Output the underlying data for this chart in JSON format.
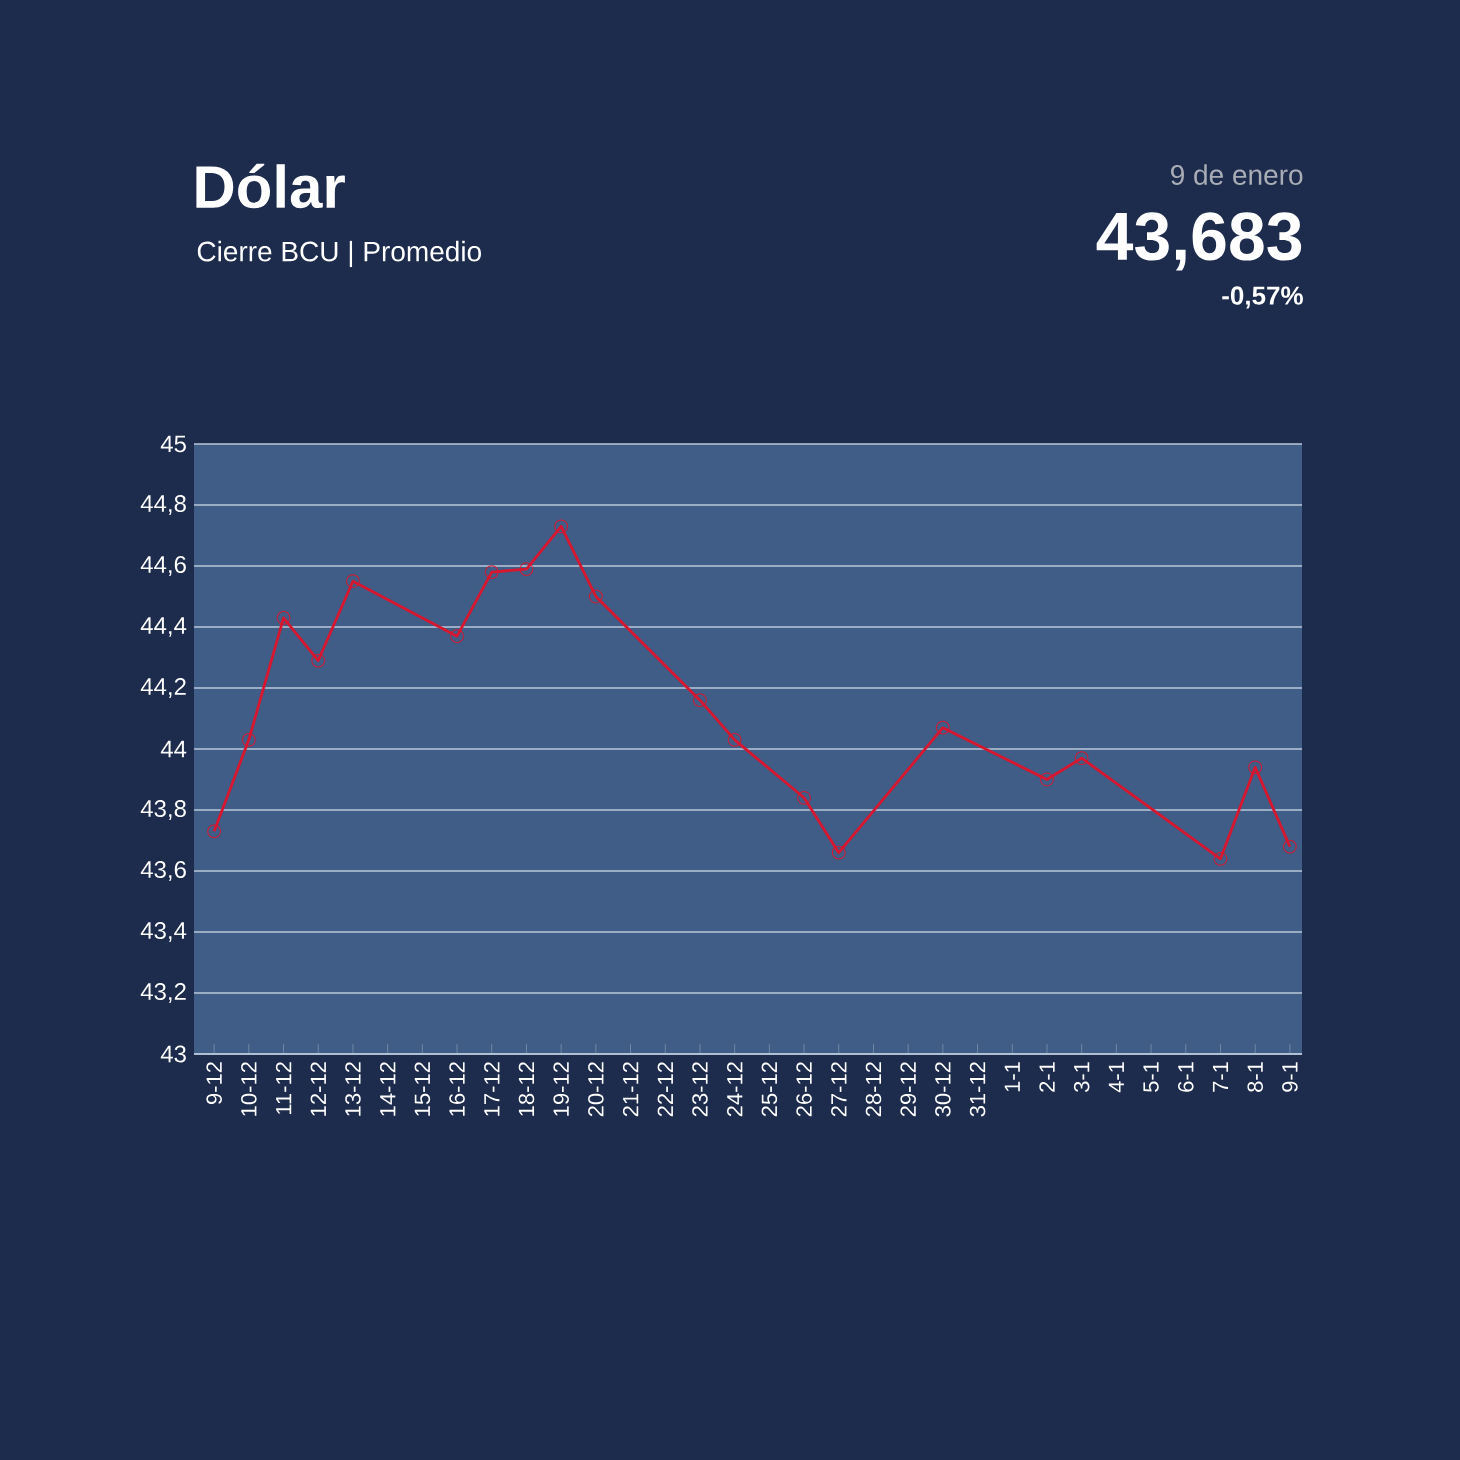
{
  "chart_data": {
    "type": "line",
    "title": "Dólar",
    "subtitle": "Cierre BCU | Promedio",
    "annotations": [
      "9 de enero",
      "43,683",
      "-0,57%"
    ],
    "categories": [
      "9-12",
      "10-12",
      "11-12",
      "12-12",
      "13-12",
      "14-12",
      "15-12",
      "16-12",
      "17-12",
      "18-12",
      "19-12",
      "20-12",
      "21-12",
      "22-12",
      "23-12",
      "24-12",
      "25-12",
      "26-12",
      "27-12",
      "28-12",
      "29-12",
      "30-12",
      "31-12",
      "1-1",
      "2-1",
      "3-1",
      "4-1",
      "5-1",
      "6-1",
      "7-1",
      "8-1",
      "9-1"
    ],
    "series": [
      {
        "color": "#d7172f",
        "values": [
          43.73,
          44.03,
          44.43,
          44.29,
          44.55,
          null,
          null,
          44.37,
          44.58,
          44.59,
          44.73,
          44.5,
          null,
          null,
          44.16,
          44.03,
          null,
          43.84,
          43.66,
          null,
          null,
          44.07,
          null,
          null,
          43.9,
          43.97,
          null,
          null,
          null,
          43.64,
          43.94,
          43.68
        ]
      }
    ],
    "ylim": [
      43,
      45
    ],
    "yticks": [
      43,
      {
        "value": 43.2,
        "label": "43,2"
      },
      {
        "value": 43.4,
        "label": "43,4"
      },
      {
        "value": 43.6,
        "label": "43,6"
      },
      {
        "value": 43.8,
        "label": "43,8"
      },
      44,
      {
        "value": 44.2,
        "label": "44,2"
      },
      {
        "value": 44.4,
        "label": "44,4"
      },
      {
        "value": 44.6,
        "label": "44,6"
      },
      {
        "value": 44.8,
        "label": "44,8"
      },
      45
    ],
    "grid": "y",
    "marker": "circle",
    "line_style": "solid"
  }
}
